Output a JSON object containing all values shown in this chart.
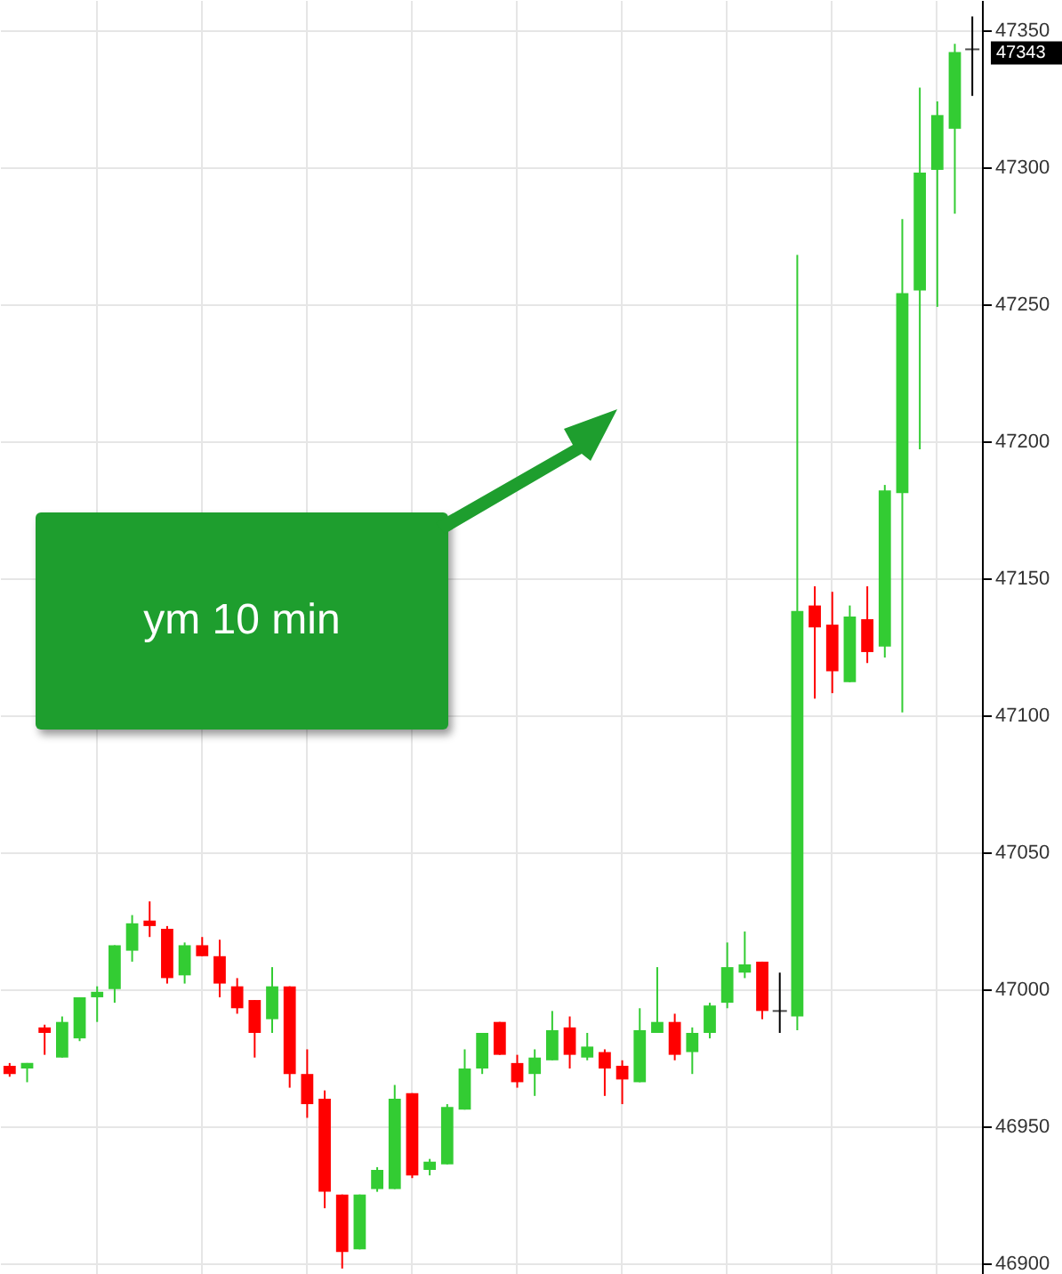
{
  "chart_data": {
    "type": "candlestick",
    "categories": [
      null,
      null,
      null,
      null,
      null,
      null,
      null,
      null,
      null,
      null,
      null,
      null,
      null,
      null,
      null,
      null,
      null,
      null,
      null,
      null,
      null,
      null,
      null,
      null,
      null,
      null,
      null,
      null,
      null,
      null,
      null,
      null,
      null,
      null,
      null,
      null,
      null,
      null,
      null,
      null,
      null,
      null,
      null,
      null,
      null,
      null,
      null,
      null,
      null,
      null,
      null,
      null,
      null,
      null,
      null,
      null
    ],
    "ohlc": [
      [
        46972,
        46973,
        46968,
        46969
      ],
      [
        46971,
        46973,
        46966,
        46973
      ],
      [
        46986,
        46987,
        46976,
        46984
      ],
      [
        46975,
        46990,
        46975,
        46988
      ],
      [
        46982,
        46997,
        46981,
        46997
      ],
      [
        46997,
        47001,
        46988,
        46999
      ],
      [
        47000,
        47016,
        46995,
        47016
      ],
      [
        47014,
        47027,
        47010,
        47024
      ],
      [
        47025,
        47032,
        47019,
        47023
      ],
      [
        47022,
        47023,
        47002,
        47004
      ],
      [
        47005,
        47017,
        47002,
        47016
      ],
      [
        47016,
        47019,
        47012,
        47012
      ],
      [
        47012,
        47018,
        46997,
        47002
      ],
      [
        47001,
        47004,
        46991,
        46993
      ],
      [
        46996,
        46996,
        46975,
        46984
      ],
      [
        46989,
        47008,
        46984,
        47001
      ],
      [
        47001,
        47001,
        46964,
        46969
      ],
      [
        46969,
        46978,
        46953,
        46958
      ],
      [
        46960,
        46963,
        46920,
        46926
      ],
      [
        46925,
        46925,
        46898,
        46904
      ],
      [
        46905,
        46925,
        46905,
        46925
      ],
      [
        46927,
        46935,
        46926,
        46934
      ],
      [
        46927,
        46965,
        46927,
        46960
      ],
      [
        46962,
        46962,
        46931,
        46932
      ],
      [
        46934,
        46938,
        46932,
        46937
      ],
      [
        46936,
        46958,
        46936,
        46957
      ],
      [
        46956,
        46978,
        46956,
        46971
      ],
      [
        46971,
        46984,
        46969,
        46984
      ],
      [
        46988,
        46988,
        46976,
        46976
      ],
      [
        46973,
        46976,
        46964,
        46966
      ],
      [
        46969,
        46978,
        46961,
        46975
      ],
      [
        46974,
        46992,
        46974,
        46985
      ],
      [
        46986,
        46990,
        46971,
        46976
      ],
      [
        46975,
        46984,
        46974,
        46979
      ],
      [
        46977,
        46978,
        46961,
        46971
      ],
      [
        46972,
        46974,
        46958,
        46967
      ],
      [
        46966,
        46993,
        46966,
        46985
      ],
      [
        46984,
        47008,
        46984,
        46988
      ],
      [
        46988,
        46991,
        46974,
        46976
      ],
      [
        46977,
        46986,
        46969,
        46984
      ],
      [
        46984,
        46995,
        46982,
        46994
      ],
      [
        46995,
        47017,
        46993,
        47008
      ],
      [
        47006,
        47021,
        47004,
        47009
      ],
      [
        47010,
        47010,
        46989,
        46992
      ],
      [
        46992,
        47006,
        46984,
        46992
      ],
      [
        46990,
        47268,
        46985,
        47138
      ],
      [
        47140,
        47147,
        47106,
        47132
      ],
      [
        47133,
        47145,
        47108,
        47116
      ],
      [
        47112,
        47140,
        47112,
        47136
      ],
      [
        47135,
        47147,
        47119,
        47123
      ],
      [
        47125,
        47184,
        47121,
        47182
      ],
      [
        47181,
        47281,
        47101,
        47254
      ],
      [
        47255,
        47329,
        47197,
        47298
      ],
      [
        47299,
        47324,
        47249,
        47319
      ],
      [
        47314,
        47345,
        47283,
        47342
      ],
      [
        47343,
        47355,
        47326,
        47343
      ]
    ],
    "colors": [
      "#ff0000",
      "#33cc33",
      "#ff0000",
      "#33cc33",
      "#33cc33",
      "#33cc33",
      "#33cc33",
      "#33cc33",
      "#ff0000",
      "#ff0000",
      "#33cc33",
      "#ff0000",
      "#ff0000",
      "#ff0000",
      "#ff0000",
      "#33cc33",
      "#ff0000",
      "#ff0000",
      "#ff0000",
      "#ff0000",
      "#33cc33",
      "#33cc33",
      "#33cc33",
      "#ff0000",
      "#33cc33",
      "#33cc33",
      "#33cc33",
      "#33cc33",
      "#ff0000",
      "#ff0000",
      "#33cc33",
      "#33cc33",
      "#ff0000",
      "#33cc33",
      "#ff0000",
      "#ff0000",
      "#33cc33",
      "#33cc33",
      "#ff0000",
      "#33cc33",
      "#33cc33",
      "#33cc33",
      "#33cc33",
      "#ff0000",
      "#000000",
      "#33cc33",
      "#ff0000",
      "#ff0000",
      "#33cc33",
      "#ff0000",
      "#33cc33",
      "#33cc33",
      "#33cc33",
      "#33cc33",
      "#33cc33",
      "#000000"
    ],
    "ylim": [
      46896,
      47361
    ],
    "yticks": [
      46900,
      46950,
      47000,
      47050,
      47100,
      47150,
      47200,
      47250,
      47300,
      47350
    ],
    "grid": true,
    "annotations": [
      "ym 10 min",
      "47343"
    ]
  }
}
